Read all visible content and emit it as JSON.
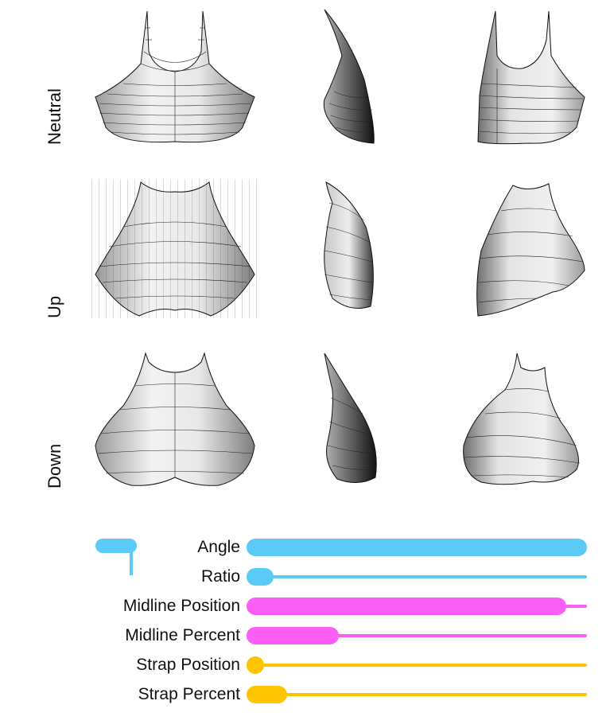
{
  "rows": [
    {
      "label": "Neutral"
    },
    {
      "label": "Up"
    },
    {
      "label": "Down"
    }
  ],
  "views": [
    "front",
    "side",
    "three-quarter"
  ],
  "sliders": [
    {
      "label": "Angle",
      "value": 1.0,
      "color": "#5ccaf7"
    },
    {
      "label": "Ratio",
      "value": 0.08,
      "color": "#5ccaf7"
    },
    {
      "label": "Midline Position",
      "value": 0.94,
      "color": "#fb5ef5"
    },
    {
      "label": "Midline Percent",
      "value": 0.27,
      "color": "#fb5ef5"
    },
    {
      "label": "Strap Position",
      "value": 0.05,
      "color": "#ffc300"
    },
    {
      "label": "Strap Percent",
      "value": 0.12,
      "color": "#ffc300"
    }
  ]
}
